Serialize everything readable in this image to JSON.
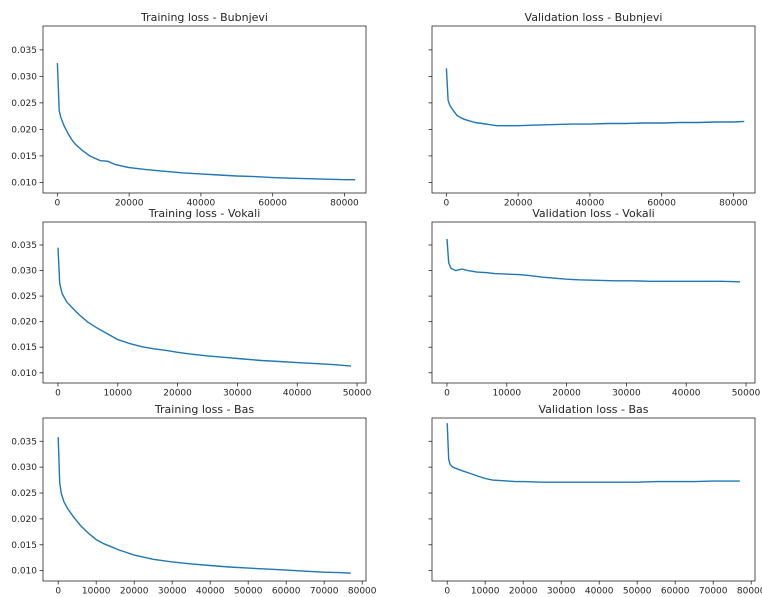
{
  "chart_data": [
    {
      "type": "line",
      "title": "Training loss - Bubnjevi",
      "xlabel": "",
      "ylabel": "",
      "xlim": [
        -4000,
        86000
      ],
      "ylim": [
        0.008,
        0.0395
      ],
      "xticks": [
        0,
        20000,
        40000,
        60000,
        80000
      ],
      "yticks": [
        0.01,
        0.015,
        0.02,
        0.025,
        0.03,
        0.035
      ],
      "ytick_labels": [
        "0.010",
        "0.015",
        "0.020",
        "0.025",
        "0.030",
        "0.035"
      ],
      "grid": false,
      "series": [
        {
          "x": [
            0,
            500,
            1000,
            2000,
            3000,
            4000,
            5000,
            6000,
            7000,
            8000,
            9000,
            10000,
            12000,
            14000,
            16000,
            20000,
            25000,
            30000,
            35000,
            40000,
            45000,
            50000,
            55000,
            60000,
            65000,
            70000,
            75000,
            80000,
            83000
          ],
          "y": [
            0.0325,
            0.0235,
            0.0222,
            0.0205,
            0.0192,
            0.0181,
            0.0172,
            0.0166,
            0.016,
            0.0155,
            0.015,
            0.0147,
            0.0141,
            0.014,
            0.0134,
            0.0128,
            0.0124,
            0.0121,
            0.0118,
            0.0116,
            0.0114,
            0.0112,
            0.0111,
            0.0109,
            0.0108,
            0.0107,
            0.0106,
            0.0105,
            0.0105
          ]
        }
      ]
    },
    {
      "type": "line",
      "title": "Validation loss - Bubnjevi",
      "xlabel": "",
      "ylabel": "",
      "xlim": [
        -4000,
        86000
      ],
      "ylim": [
        0.008,
        0.0395
      ],
      "xticks": [
        0,
        20000,
        40000,
        60000,
        80000
      ],
      "yticks": [
        0.01,
        0.015,
        0.02,
        0.025,
        0.03,
        0.035
      ],
      "ytick_labels": [],
      "grid": false,
      "series": [
        {
          "x": [
            0,
            500,
            1000,
            2000,
            3000,
            4000,
            5000,
            6000,
            8000,
            10000,
            12000,
            14000,
            16000,
            18000,
            20000,
            25000,
            30000,
            35000,
            40000,
            45000,
            50000,
            55000,
            60000,
            65000,
            70000,
            75000,
            80000,
            83000
          ],
          "y": [
            0.0315,
            0.0255,
            0.0245,
            0.0235,
            0.0226,
            0.0222,
            0.0219,
            0.0217,
            0.0213,
            0.0211,
            0.0209,
            0.0207,
            0.0207,
            0.0207,
            0.0207,
            0.0208,
            0.0209,
            0.021,
            0.021,
            0.0211,
            0.0211,
            0.0212,
            0.0212,
            0.0213,
            0.0213,
            0.0214,
            0.0214,
            0.0215
          ]
        }
      ]
    },
    {
      "type": "line",
      "title": "Training loss - Vokali",
      "xlabel": "",
      "ylabel": "",
      "xlim": [
        -2500,
        51500
      ],
      "ylim": [
        0.008,
        0.0395
      ],
      "xticks": [
        0,
        10000,
        20000,
        30000,
        40000,
        50000
      ],
      "yticks": [
        0.01,
        0.015,
        0.02,
        0.025,
        0.03,
        0.035
      ],
      "ytick_labels": [
        "0.010",
        "0.015",
        "0.020",
        "0.025",
        "0.030",
        "0.035"
      ],
      "grid": false,
      "series": [
        {
          "x": [
            0,
            300,
            700,
            1500,
            2500,
            3500,
            5000,
            6500,
            8000,
            10000,
            12000,
            14000,
            16000,
            18000,
            20000,
            22000,
            25000,
            28000,
            31000,
            34000,
            37000,
            40000,
            43000,
            46000,
            49000
          ],
          "y": [
            0.0345,
            0.0275,
            0.0255,
            0.0238,
            0.0226,
            0.0214,
            0.0199,
            0.0188,
            0.0178,
            0.0165,
            0.0157,
            0.0151,
            0.0147,
            0.0144,
            0.014,
            0.0137,
            0.0133,
            0.013,
            0.0127,
            0.0124,
            0.0122,
            0.012,
            0.0118,
            0.0116,
            0.0113
          ]
        }
      ]
    },
    {
      "type": "line",
      "title": "Validation loss - Vokali",
      "xlabel": "",
      "ylabel": "",
      "xlim": [
        -2500,
        51500
      ],
      "ylim": [
        0.008,
        0.0395
      ],
      "xticks": [
        0,
        10000,
        20000,
        30000,
        40000,
        50000
      ],
      "yticks": [
        0.01,
        0.015,
        0.02,
        0.025,
        0.03,
        0.035
      ],
      "ytick_labels": [],
      "grid": false,
      "series": [
        {
          "x": [
            0,
            300,
            700,
            1500,
            2500,
            3500,
            5000,
            6500,
            8000,
            10000,
            12000,
            14000,
            16000,
            18000,
            20000,
            22000,
            25000,
            28000,
            31000,
            34000,
            37000,
            40000,
            43000,
            46000,
            49000
          ],
          "y": [
            0.0362,
            0.0315,
            0.0304,
            0.03,
            0.0303,
            0.03,
            0.0297,
            0.0296,
            0.0294,
            0.0293,
            0.0292,
            0.029,
            0.0287,
            0.0285,
            0.0283,
            0.0282,
            0.0281,
            0.028,
            0.028,
            0.0279,
            0.0279,
            0.0279,
            0.0279,
            0.0279,
            0.0278
          ]
        }
      ]
    },
    {
      "type": "line",
      "title": "Training loss - Bas",
      "xlabel": "",
      "ylabel": "",
      "xlim": [
        -4000,
        81000
      ],
      "ylim": [
        0.008,
        0.0395
      ],
      "xticks": [
        0,
        10000,
        20000,
        30000,
        40000,
        50000,
        60000,
        70000,
        80000
      ],
      "yticks": [
        0.01,
        0.015,
        0.02,
        0.025,
        0.03,
        0.035
      ],
      "ytick_labels": [
        "0.010",
        "0.015",
        "0.020",
        "0.025",
        "0.030",
        "0.035"
      ],
      "grid": false,
      "series": [
        {
          "x": [
            0,
            400,
            800,
            1500,
            2500,
            4000,
            6000,
            8000,
            10000,
            12000,
            14000,
            16000,
            18000,
            20000,
            25000,
            30000,
            35000,
            40000,
            45000,
            50000,
            55000,
            60000,
            65000,
            70000,
            75000,
            77000
          ],
          "y": [
            0.0358,
            0.027,
            0.025,
            0.0233,
            0.022,
            0.0204,
            0.0186,
            0.0172,
            0.016,
            0.0152,
            0.0146,
            0.014,
            0.0135,
            0.013,
            0.0122,
            0.0117,
            0.0113,
            0.011,
            0.0107,
            0.0105,
            0.0103,
            0.0101,
            0.0099,
            0.0097,
            0.0096,
            0.0095
          ]
        }
      ]
    },
    {
      "type": "line",
      "title": "Validation loss - Bas",
      "xlabel": "",
      "ylabel": "",
      "xlim": [
        -4000,
        81000
      ],
      "ylim": [
        0.008,
        0.0395
      ],
      "xticks": [
        0,
        10000,
        20000,
        30000,
        40000,
        50000,
        60000,
        70000,
        80000
      ],
      "yticks": [
        0.01,
        0.015,
        0.02,
        0.025,
        0.03,
        0.035
      ],
      "ytick_labels": [],
      "grid": false,
      "series": [
        {
          "x": [
            0,
            400,
            800,
            1500,
            2500,
            4000,
            6000,
            8000,
            10000,
            12000,
            14000,
            16000,
            18000,
            20000,
            25000,
            30000,
            35000,
            40000,
            45000,
            50000,
            55000,
            60000,
            65000,
            70000,
            75000,
            77000
          ],
          "y": [
            0.0385,
            0.0315,
            0.0305,
            0.03,
            0.0297,
            0.0293,
            0.0288,
            0.0283,
            0.0278,
            0.0275,
            0.0274,
            0.0273,
            0.0272,
            0.0272,
            0.0271,
            0.0271,
            0.0271,
            0.0271,
            0.0271,
            0.0271,
            0.0272,
            0.0272,
            0.0272,
            0.0273,
            0.0273,
            0.0273
          ]
        }
      ]
    }
  ]
}
